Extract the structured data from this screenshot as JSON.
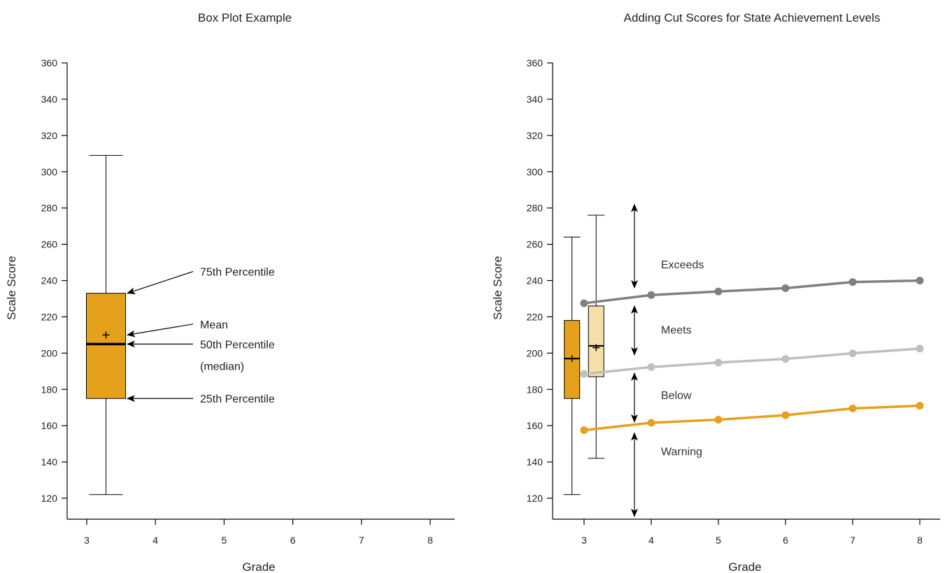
{
  "chart_data": [
    {
      "type": "box",
      "title": "Box Plot Example",
      "xlabel": "Grade",
      "ylabel": "Scale Score",
      "x_ticks": [
        "3",
        "4",
        "5",
        "6",
        "7",
        "8"
      ],
      "y_ticks": [
        "120",
        "140",
        "160",
        "180",
        "200",
        "220",
        "240",
        "260",
        "280",
        "300",
        "320",
        "340",
        "360"
      ],
      "xlim": [
        2.7,
        8.35
      ],
      "ylim": [
        110,
        360
      ],
      "boxes": [
        {
          "grade": 3.28,
          "min": 122,
          "q1": 175,
          "median": 205,
          "mean": 210,
          "q3": 233,
          "max": 309,
          "color": "#e6a11c"
        }
      ],
      "annotations": [
        {
          "text": "75th Percentile",
          "target_x": 3.55,
          "target_y": 233,
          "label_y": 245
        },
        {
          "text": "Mean",
          "target_x": 3.55,
          "target_y": 210,
          "label_y": 216
        },
        {
          "text": "50th Percentile",
          "target_x": 3.55,
          "target_y": 205,
          "label_y": 205
        },
        {
          "text": "(median)",
          "target_x": null,
          "target_y": null,
          "label_y": 193
        },
        {
          "text": "25th Percentile",
          "target_x": 3.55,
          "target_y": 175,
          "label_y": 175
        }
      ]
    },
    {
      "type": "box+line",
      "title": "Adding Cut Scores for State Achievement Levels",
      "xlabel": "Grade",
      "ylabel": "Scale Score",
      "x_ticks": [
        "3",
        "4",
        "5",
        "6",
        "7",
        "8"
      ],
      "y_ticks": [
        "120",
        "140",
        "160",
        "180",
        "200",
        "220",
        "240",
        "260",
        "280",
        "300",
        "320",
        "340",
        "360"
      ],
      "xlim": [
        2.55,
        8.25
      ],
      "ylim": [
        110,
        360
      ],
      "boxes": [
        {
          "grade": 2.82,
          "min": 122,
          "q1": 175,
          "median": 197,
          "mean": 197,
          "q3": 218,
          "max": 264,
          "color": "#e6a11c"
        },
        {
          "grade": 3.18,
          "min": 142,
          "q1": 187,
          "median": 204,
          "mean": 203,
          "q3": 226,
          "max": 276,
          "color": "#f6dfab"
        }
      ],
      "x": [
        3,
        4,
        5,
        6,
        7,
        8
      ],
      "series": [
        {
          "values": [
            227.5,
            232,
            234,
            235.8,
            239.2,
            240
          ],
          "color": "#808080"
        },
        {
          "values": [
            188.5,
            192.3,
            194.8,
            196.8,
            199.9,
            202.5
          ],
          "color": "#bfbfbf"
        },
        {
          "values": [
            157.5,
            161.6,
            163.3,
            165.8,
            169.5,
            171
          ],
          "color": "#e6a11c"
        }
      ],
      "level_labels": [
        {
          "text": "Exceeds",
          "y": 249
        },
        {
          "text": "Meets",
          "y": 213
        },
        {
          "text": "Below",
          "y": 177
        },
        {
          "text": "Warning",
          "y": 146
        }
      ],
      "level_arrows_x": 3.75,
      "level_arrows": [
        {
          "from": 236,
          "to": 282
        },
        {
          "from": 199,
          "to": 226
        },
        {
          "from": 162,
          "to": 189
        },
        {
          "from": 110,
          "to": 156
        }
      ]
    }
  ]
}
